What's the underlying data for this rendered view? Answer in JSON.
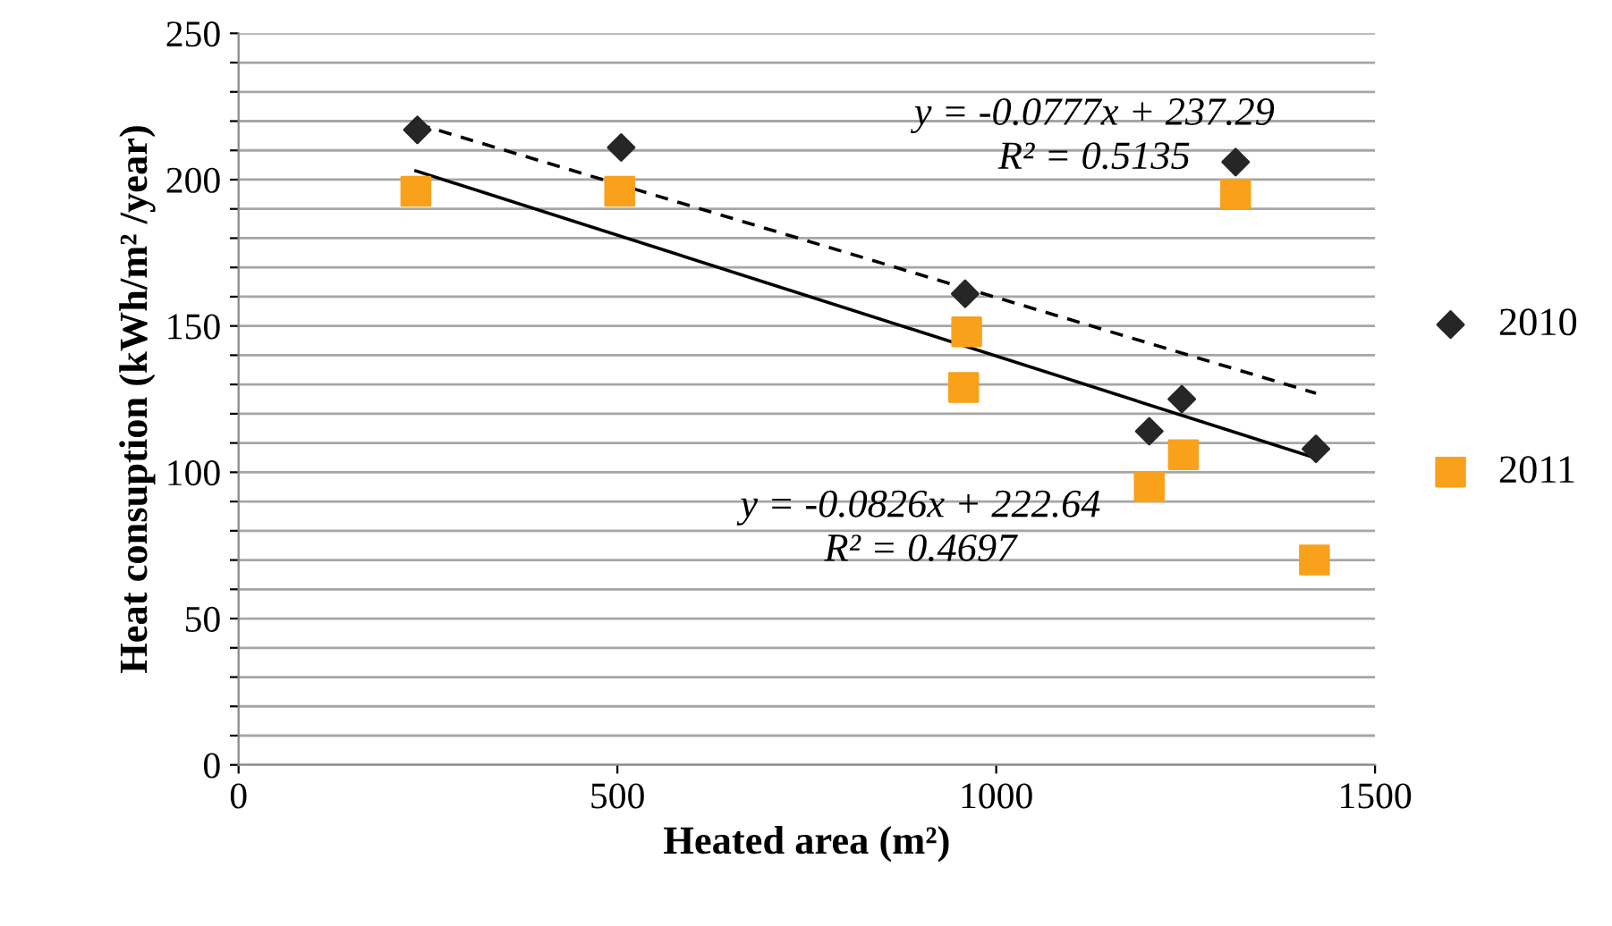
{
  "chart_data": {
    "type": "scatter",
    "xlabel": "Heated area (m²)",
    "ylabel": "Heat consuption (kWh/m² /year)",
    "xlim": [
      0,
      1500
    ],
    "xticks": [
      0,
      500,
      1000,
      1500
    ],
    "ylim": [
      0,
      250
    ],
    "yticks": [
      0,
      {
        "value": 10,
        "label": null
      },
      {
        "value": 20,
        "label": null
      },
      {
        "value": 30,
        "label": null
      },
      {
        "value": 40,
        "label": null
      },
      50,
      {
        "value": 60,
        "label": null
      },
      {
        "value": 70,
        "label": null
      },
      {
        "value": 80,
        "label": null
      },
      {
        "value": 90,
        "label": null
      },
      100,
      {
        "value": 110,
        "label": null
      },
      {
        "value": 120,
        "label": null
      },
      {
        "value": 130,
        "label": null
      },
      {
        "value": 140,
        "label": null
      },
      150,
      {
        "value": 160,
        "label": null
      },
      {
        "value": 170,
        "label": null
      },
      {
        "value": 180,
        "label": null
      },
      {
        "value": 190,
        "label": null
      },
      200,
      {
        "value": 210,
        "label": null
      },
      {
        "value": 220,
        "label": null
      },
      {
        "value": 230,
        "label": null
      },
      {
        "value": 240,
        "label": null
      },
      250
    ],
    "grid": "y",
    "legend": "right",
    "series": [
      {
        "name": "2010",
        "marker": "diamond",
        "color": "#262626",
        "x": [
          236,
          505,
          959,
          1202,
          1245,
          1316,
          1422
        ],
        "values": [
          217,
          211,
          161,
          114,
          125,
          206,
          108
        ]
      },
      {
        "name": "2011",
        "marker": "square",
        "color": "#f9a11b",
        "x": [
          234,
          503,
          957,
          961,
          1202,
          1247,
          1316,
          1420
        ],
        "values": [
          196,
          196,
          129,
          148,
          95,
          106,
          195,
          70
        ]
      },
      {
        "type": "line",
        "marker": "none",
        "line_style": "dashed",
        "color": "#000000",
        "x": [
          236,
          1422
        ],
        "values": [
          219,
          127
        ]
      },
      {
        "type": "line",
        "marker": "none",
        "line_style": "solid",
        "color": "#000000",
        "x": [
          234,
          1420
        ],
        "values": [
          203,
          105
        ]
      }
    ],
    "annotations": [
      "y = -0.0777x + 237.29",
      "R² = 0.5135",
      "y = -0.0826x + 222.64",
      "R² = 0.4697"
    ]
  }
}
